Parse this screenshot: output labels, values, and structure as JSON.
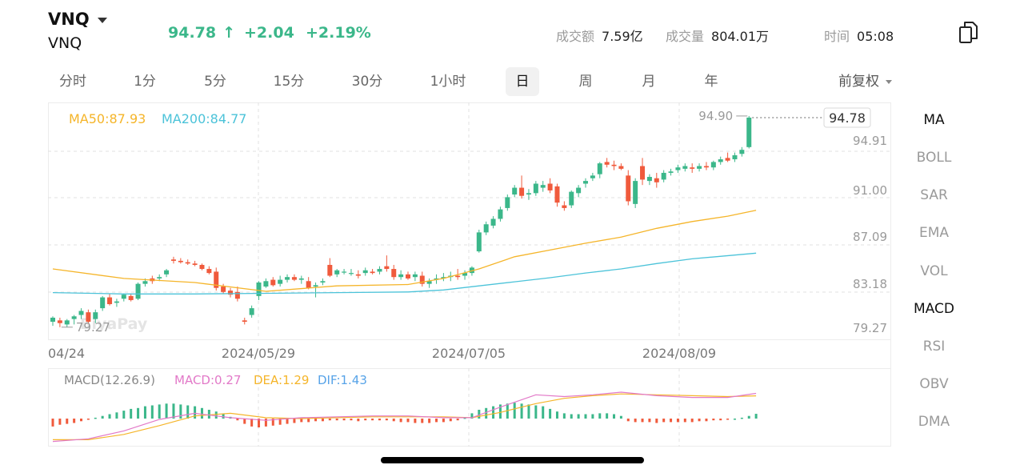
{
  "header": {
    "symbol": "VNQ",
    "subtitle": "VNQ",
    "price": "94.78",
    "price_arrow": "↑",
    "change": "+2.04",
    "change_pct": "+2.19%",
    "turnover_label": "成交额",
    "turnover_value": "7.59亿",
    "volume_label": "成交量",
    "volume_value": "804.01万",
    "time_label": "时间",
    "time_value": "05:08",
    "copy_icon": "copy-icon",
    "up_color": "#3bb78a",
    "down_color": "#f05a3c"
  },
  "tabs": [
    "分时",
    "1分",
    "5分",
    "15分",
    "30分",
    "1小时",
    "日",
    "周",
    "月",
    "年"
  ],
  "active_tab": "日",
  "adjust": "前复权",
  "indicators": [
    "MA",
    "BOLL",
    "SAR",
    "EMA",
    "VOL",
    "MACD",
    "RSI",
    "OBV",
    "DMA"
  ],
  "active_indicators": [
    "MA",
    "MACD"
  ],
  "watermark": "BiyaPay",
  "chart_data": {
    "type": "candlestick",
    "ma_legend": {
      "ma50": "MA50:87.93",
      "ma200": "MA200:84.77"
    },
    "y_ticks": [
      "94.91",
      "91.00",
      "87.09",
      "83.18",
      "79.27"
    ],
    "y_values": [
      94.91,
      91.0,
      87.09,
      83.18,
      79.27
    ],
    "ylim": [
      78.4,
      95.9
    ],
    "x_labels": [
      "04/24",
      "2024/05/29",
      "2024/07/05",
      "2024/08/09"
    ],
    "x_label_index": [
      0,
      24,
      48,
      72
    ],
    "high_marker": "94.90",
    "low_marker": "79.27",
    "last_price_label": "94.78",
    "ohlc": [
      [
        79.7,
        80.1,
        79.4,
        80.0
      ],
      [
        79.8,
        80.0,
        79.3,
        79.6
      ],
      [
        79.5,
        79.9,
        79.3,
        79.8
      ],
      [
        79.9,
        80.2,
        79.5,
        80.1
      ],
      [
        80.2,
        80.7,
        79.9,
        80.5
      ],
      [
        80.4,
        80.6,
        79.6,
        79.7
      ],
      [
        79.9,
        80.6,
        79.6,
        80.4
      ],
      [
        80.7,
        81.6,
        80.5,
        81.5
      ],
      [
        81.5,
        81.8,
        80.9,
        81.0
      ],
      [
        81.1,
        81.4,
        80.8,
        81.2
      ],
      [
        81.4,
        81.8,
        81.2,
        81.7
      ],
      [
        81.6,
        81.8,
        81.2,
        81.3
      ],
      [
        81.4,
        82.6,
        81.3,
        82.5
      ],
      [
        82.5,
        82.9,
        82.3,
        82.7
      ],
      [
        82.9,
        83.1,
        82.5,
        82.7
      ],
      [
        82.9,
        83.2,
        82.7,
        83.0
      ],
      [
        83.2,
        83.6,
        83.0,
        83.5
      ],
      [
        84.3,
        84.5,
        84.0,
        84.2
      ],
      [
        84.2,
        84.4,
        84.0,
        84.1
      ],
      [
        84.1,
        84.3,
        83.9,
        84.0
      ],
      [
        84.0,
        84.2,
        83.8,
        83.9
      ],
      [
        83.9,
        84.0,
        83.5,
        83.6
      ],
      [
        83.6,
        83.8,
        83.2,
        83.3
      ],
      [
        83.4,
        83.7,
        82.0,
        82.2
      ],
      [
        82.3,
        82.5,
        81.8,
        81.9
      ],
      [
        82.0,
        82.2,
        81.5,
        81.7
      ],
      [
        81.9,
        82.3,
        81.2,
        81.4
      ],
      [
        79.8,
        80.0,
        79.5,
        79.7
      ],
      [
        80.2,
        80.9,
        80.0,
        80.7
      ],
      [
        81.6,
        82.7,
        81.3,
        82.6
      ],
      [
        82.3,
        82.9,
        82.2,
        82.7
      ],
      [
        82.8,
        83.0,
        82.3,
        82.4
      ],
      [
        82.5,
        83.1,
        82.3,
        82.8
      ],
      [
        82.8,
        83.2,
        82.6,
        83.0
      ],
      [
        83.0,
        83.2,
        82.7,
        82.8
      ],
      [
        82.8,
        83.1,
        82.5,
        82.9
      ],
      [
        82.7,
        83.0,
        82.1,
        82.2
      ],
      [
        82.3,
        82.6,
        81.5,
        82.4
      ],
      [
        82.6,
        82.9,
        82.4,
        82.7
      ],
      [
        83.9,
        84.4,
        83.0,
        83.1
      ],
      [
        83.2,
        83.6,
        83.0,
        83.5
      ],
      [
        83.4,
        83.6,
        83.2,
        83.4
      ],
      [
        83.3,
        83.6,
        83.1,
        83.3
      ],
      [
        83.2,
        83.5,
        82.9,
        83.1
      ],
      [
        83.3,
        83.7,
        83.1,
        83.5
      ],
      [
        83.4,
        83.6,
        83.2,
        83.3
      ],
      [
        83.4,
        83.8,
        83.2,
        83.6
      ],
      [
        83.8,
        84.6,
        83.4,
        83.6
      ],
      [
        83.6,
        83.9,
        82.8,
        83.0
      ],
      [
        83.0,
        83.5,
        82.8,
        83.2
      ],
      [
        83.2,
        83.4,
        82.8,
        82.9
      ],
      [
        83.0,
        83.4,
        82.7,
        83.2
      ],
      [
        83.1,
        83.4,
        82.3,
        82.5
      ],
      [
        82.5,
        82.9,
        82.2,
        82.7
      ],
      [
        82.8,
        83.2,
        82.5,
        82.9
      ],
      [
        82.9,
        83.3,
        82.7,
        83.0
      ],
      [
        83.0,
        83.4,
        82.7,
        83.1
      ],
      [
        83.1,
        83.6,
        82.8,
        83.0
      ],
      [
        83.1,
        83.5,
        82.8,
        83.3
      ],
      [
        83.3,
        83.8,
        83.1,
        83.7
      ],
      [
        84.9,
        86.5,
        84.8,
        86.3
      ],
      [
        86.3,
        87.1,
        86.1,
        86.9
      ],
      [
        86.8,
        87.5,
        86.6,
        87.3
      ],
      [
        87.3,
        88.2,
        87.1,
        88.0
      ],
      [
        88.1,
        89.1,
        87.9,
        88.9
      ],
      [
        89.1,
        89.8,
        88.9,
        89.6
      ],
      [
        89.6,
        90.5,
        88.8,
        89.0
      ],
      [
        89.1,
        89.5,
        88.7,
        89.2
      ],
      [
        89.2,
        90.1,
        89.0,
        89.9
      ],
      [
        89.6,
        90.1,
        89.3,
        89.8
      ],
      [
        89.9,
        90.3,
        89.2,
        89.4
      ],
      [
        89.7,
        89.9,
        88.2,
        88.5
      ],
      [
        88.3,
        88.6,
        87.9,
        88.1
      ],
      [
        88.3,
        89.4,
        88.1,
        89.3
      ],
      [
        89.2,
        89.8,
        88.9,
        89.6
      ],
      [
        89.9,
        90.3,
        89.6,
        90.1
      ],
      [
        90.3,
        90.7,
        90.1,
        90.5
      ],
      [
        90.6,
        91.5,
        90.3,
        91.4
      ],
      [
        91.5,
        91.8,
        91.1,
        91.3
      ],
      [
        91.3,
        91.6,
        90.9,
        91.2
      ],
      [
        91.2,
        91.4,
        90.9,
        91.0
      ],
      [
        90.5,
        90.9,
        88.3,
        88.6
      ],
      [
        88.4,
        90.3,
        88.1,
        90.1
      ],
      [
        91.2,
        91.8,
        89.8,
        90.2
      ],
      [
        90.1,
        90.6,
        89.8,
        90.4
      ],
      [
        90.3,
        90.7,
        89.6,
        90.0
      ],
      [
        90.2,
        90.9,
        90.0,
        90.7
      ],
      [
        90.7,
        91.0,
        90.5,
        90.8
      ],
      [
        90.9,
        91.3,
        90.7,
        91.1
      ],
      [
        91.0,
        91.4,
        90.8,
        91.2
      ],
      [
        91.1,
        91.4,
        90.7,
        91.0
      ],
      [
        91.0,
        91.4,
        90.8,
        91.2
      ],
      [
        91.2,
        91.5,
        90.9,
        91.1
      ],
      [
        91.1,
        91.6,
        90.9,
        91.5
      ],
      [
        91.5,
        91.9,
        91.3,
        91.7
      ],
      [
        91.8,
        92.2,
        91.5,
        91.6
      ],
      [
        91.7,
        92.2,
        91.5,
        92.0
      ],
      [
        92.1,
        92.6,
        91.9,
        92.4
      ],
      [
        92.6,
        94.9,
        92.5,
        94.78
      ]
    ],
    "ma50": [
      [
        0,
        83.6
      ],
      [
        10,
        82.9
      ],
      [
        20,
        82.6
      ],
      [
        30,
        81.95
      ],
      [
        40,
        82.35
      ],
      [
        50,
        82.45
      ],
      [
        55,
        82.9
      ],
      [
        60,
        83.6
      ],
      [
        65,
        84.5
      ],
      [
        70,
        85.0
      ],
      [
        75,
        85.5
      ],
      [
        80,
        85.95
      ],
      [
        85,
        86.6
      ],
      [
        90,
        87.1
      ],
      [
        95,
        87.5
      ],
      [
        99,
        87.93
      ]
    ],
    "ma200": [
      [
        0,
        81.85
      ],
      [
        10,
        81.75
      ],
      [
        20,
        81.75
      ],
      [
        30,
        81.8
      ],
      [
        40,
        81.85
      ],
      [
        50,
        81.9
      ],
      [
        55,
        82.05
      ],
      [
        60,
        82.35
      ],
      [
        65,
        82.65
      ],
      [
        70,
        82.95
      ],
      [
        75,
        83.3
      ],
      [
        80,
        83.6
      ],
      [
        85,
        84.0
      ],
      [
        90,
        84.35
      ],
      [
        99,
        84.77
      ]
    ],
    "macd_legend": {
      "title": "MACD(12.26.9)",
      "macd": "MACD:0.27",
      "dea": "DEA:1.29",
      "dif": "DIF:1.43"
    },
    "macd_ylim": [
      -1.5,
      1.5
    ],
    "macd_hist": [
      -0.45,
      -0.35,
      -0.3,
      -0.25,
      -0.15,
      -0.05,
      0.05,
      0.15,
      0.25,
      0.35,
      0.45,
      0.55,
      0.6,
      0.7,
      0.75,
      0.8,
      0.85,
      0.85,
      0.8,
      0.75,
      0.7,
      0.6,
      0.5,
      0.4,
      0.25,
      0.1,
      -0.1,
      -0.3,
      -0.45,
      -0.5,
      -0.45,
      -0.4,
      -0.35,
      -0.3,
      -0.25,
      -0.2,
      -0.2,
      -0.15,
      -0.15,
      -0.1,
      -0.1,
      -0.1,
      -0.1,
      -0.15,
      -0.1,
      -0.1,
      -0.1,
      -0.1,
      -0.15,
      -0.2,
      -0.2,
      -0.25,
      -0.25,
      -0.25,
      -0.2,
      -0.2,
      -0.15,
      -0.1,
      0.05,
      0.3,
      0.5,
      0.6,
      0.7,
      0.8,
      0.85,
      0.9,
      0.85,
      0.8,
      0.75,
      0.7,
      0.55,
      0.4,
      0.3,
      0.25,
      0.25,
      0.25,
      0.25,
      0.3,
      0.3,
      0.25,
      0.15,
      -0.15,
      -0.2,
      -0.2,
      -0.2,
      -0.25,
      -0.2,
      -0.2,
      -0.2,
      -0.2,
      -0.2,
      -0.15,
      -0.15,
      -0.1,
      -0.1,
      -0.05,
      0.0,
      0.05,
      0.15,
      0.27
    ],
    "macd_dif": [
      [
        0,
        -1.3
      ],
      [
        5,
        -1.15
      ],
      [
        10,
        -0.7
      ],
      [
        15,
        -0.05
      ],
      [
        20,
        0.3
      ],
      [
        25,
        0.05
      ],
      [
        30,
        -0.1
      ],
      [
        35,
        0.05
      ],
      [
        40,
        0.1
      ],
      [
        45,
        0.15
      ],
      [
        50,
        0.15
      ],
      [
        55,
        0.05
      ],
      [
        59,
        0.05
      ],
      [
        63,
        0.65
      ],
      [
        68,
        1.35
      ],
      [
        72,
        1.25
      ],
      [
        76,
        1.35
      ],
      [
        80,
        1.5
      ],
      [
        85,
        1.3
      ],
      [
        90,
        1.2
      ],
      [
        95,
        1.2
      ],
      [
        99,
        1.43
      ]
    ],
    "macd_dea": [
      [
        0,
        -1.2
      ],
      [
        5,
        -1.2
      ],
      [
        10,
        -0.9
      ],
      [
        15,
        -0.4
      ],
      [
        20,
        0.15
      ],
      [
        25,
        0.3
      ],
      [
        30,
        0.05
      ],
      [
        35,
        0.0
      ],
      [
        40,
        0.05
      ],
      [
        45,
        0.1
      ],
      [
        50,
        0.1
      ],
      [
        55,
        0.1
      ],
      [
        59,
        0.05
      ],
      [
        63,
        0.35
      ],
      [
        68,
        0.85
      ],
      [
        72,
        1.15
      ],
      [
        76,
        1.3
      ],
      [
        80,
        1.4
      ],
      [
        85,
        1.35
      ],
      [
        90,
        1.3
      ],
      [
        95,
        1.25
      ],
      [
        99,
        1.29
      ]
    ],
    "colors": {
      "ma50": "#f5b52a",
      "ma200": "#4cc3d9",
      "macd": "#e279c8",
      "dea": "#f5b52a",
      "dif": "#57a3e8"
    }
  }
}
